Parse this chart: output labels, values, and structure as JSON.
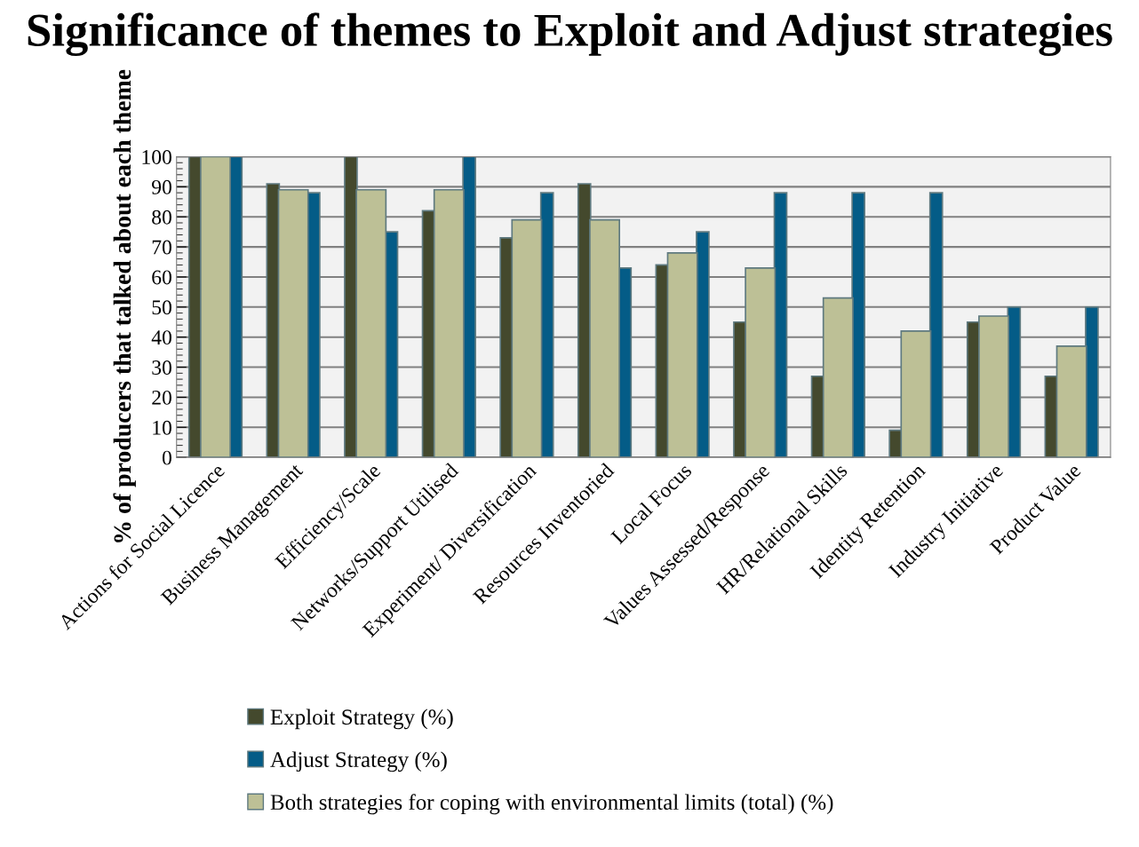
{
  "chart_data": {
    "type": "bar",
    "title": "Significance of themes to Exploit and Adjust strategies",
    "ylabel": "% of producers that talked about each theme",
    "categories": [
      "Actions for Social Licence",
      "Business Management",
      "Efficiency/Scale",
      "Networks/Support Utilised",
      "Experiment/ Diversification",
      "Resources Inventoried",
      "Local Focus",
      "Values Assessed/Response",
      "HR/Relational Skills",
      "Identity Retention",
      "Industry Initiative",
      "Product Value"
    ],
    "series": [
      {
        "name": "Exploit Strategy (%)",
        "color": "#44492d",
        "values": [
          100,
          91,
          100,
          82,
          73,
          91,
          64,
          45,
          27,
          9,
          45,
          27
        ]
      },
      {
        "name": "Adjust Strategy (%)",
        "color": "#045c87",
        "values": [
          100,
          88,
          75,
          100,
          88,
          63,
          75,
          88,
          88,
          88,
          50,
          50
        ]
      },
      {
        "name": "Both strategies for coping with environmental limits (total) (%)",
        "color": "#bdc096",
        "values": [
          100,
          89,
          89,
          89,
          79,
          79,
          68,
          63,
          53,
          42,
          47,
          37
        ]
      }
    ],
    "ylim": [
      0,
      100
    ],
    "yticks": [
      0,
      10,
      20,
      30,
      40,
      50,
      60,
      70,
      80,
      90,
      100
    ],
    "grid": "y",
    "legend": "bottom"
  }
}
